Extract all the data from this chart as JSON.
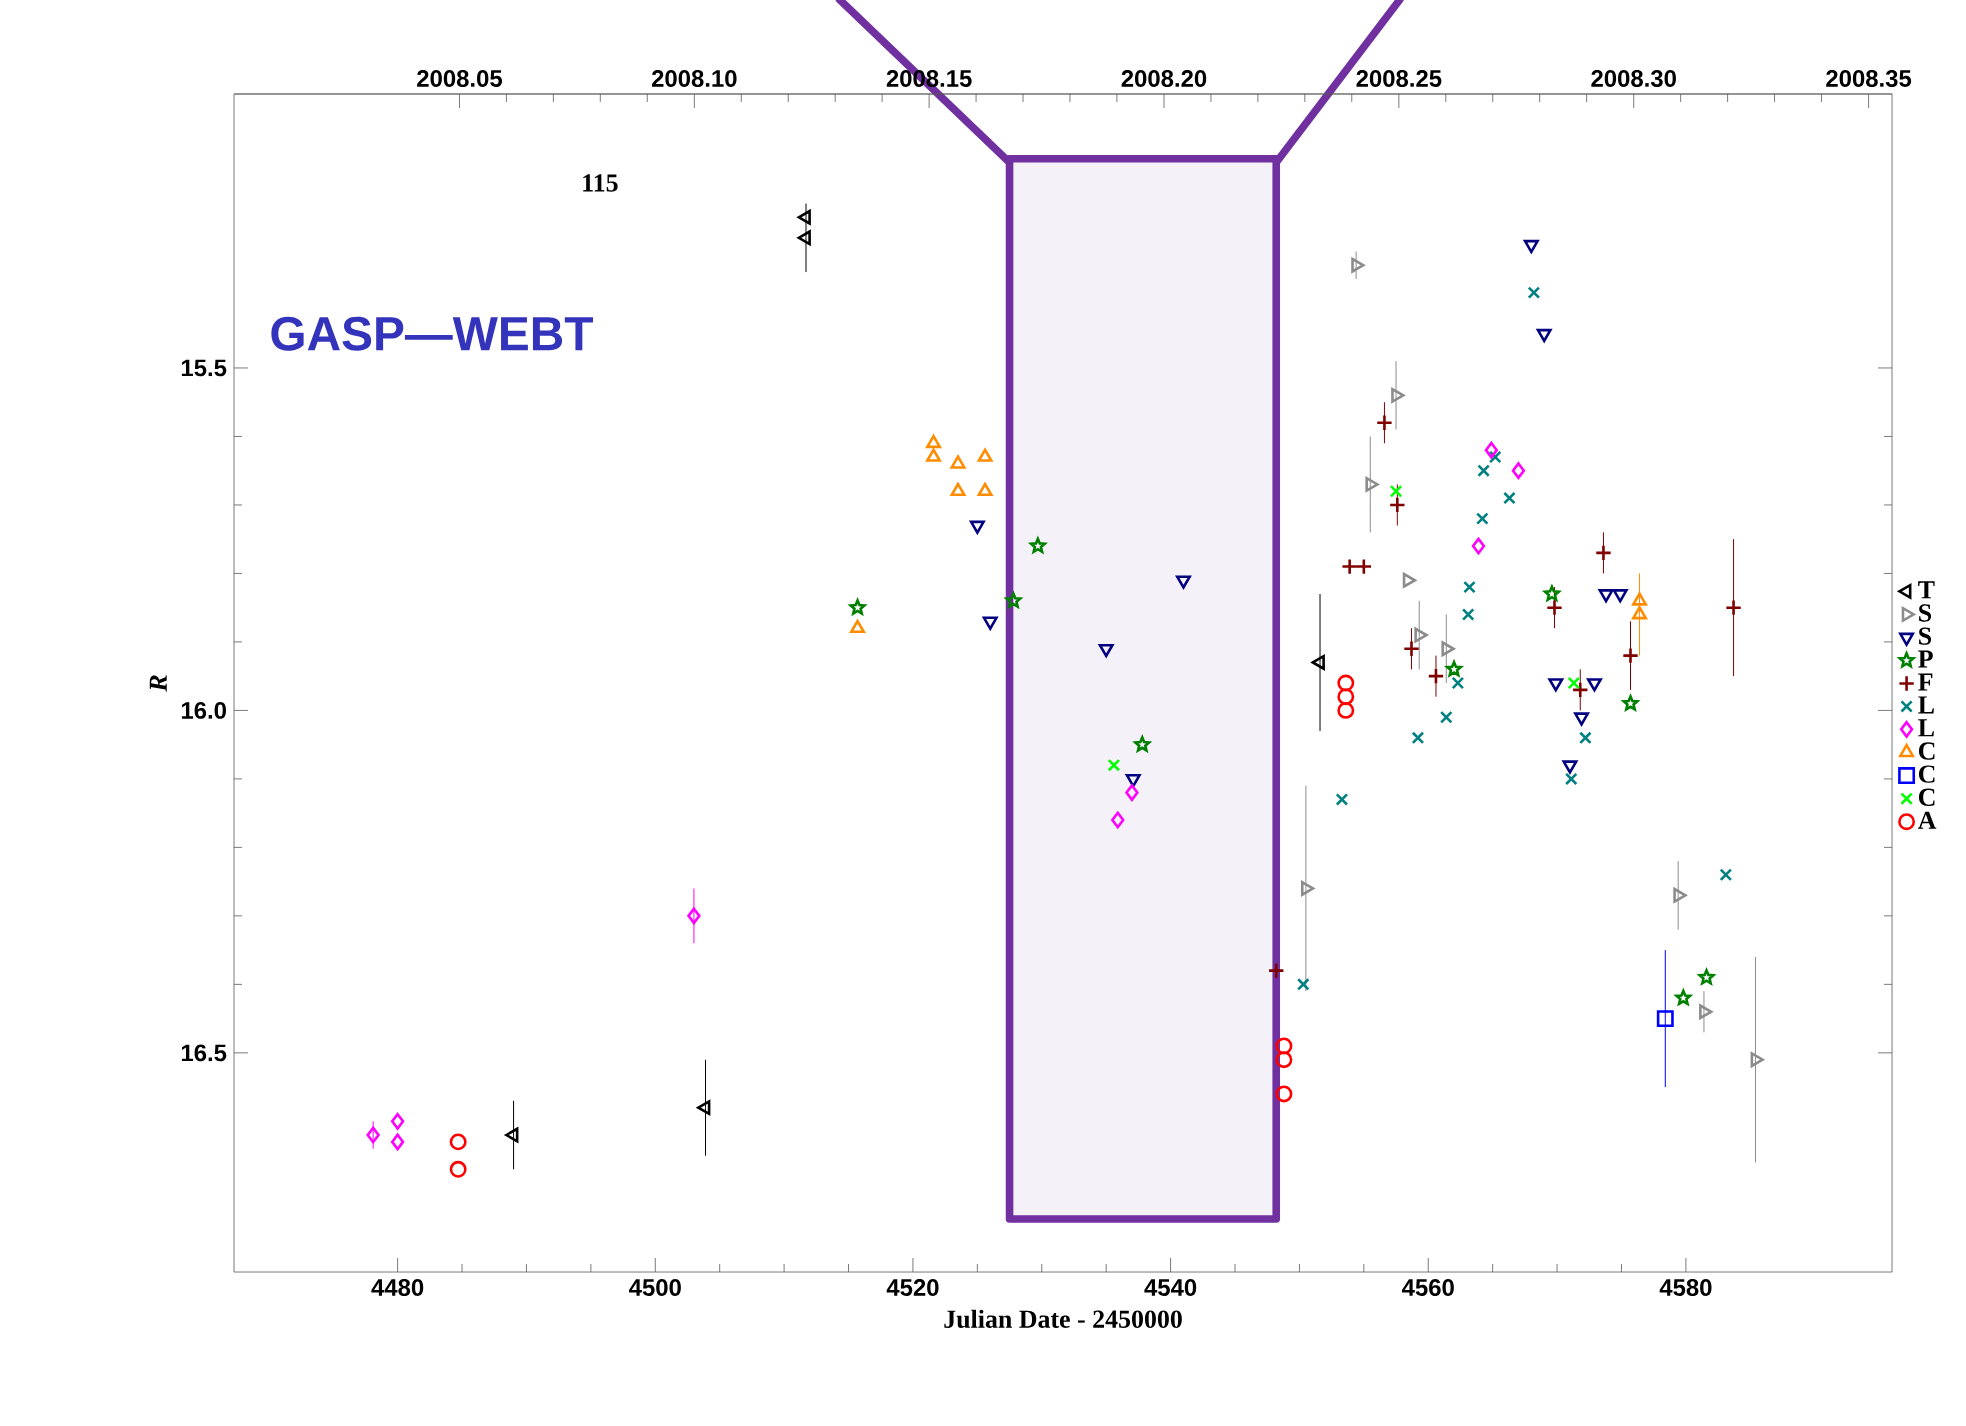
{
  "chart_data": {
    "type": "scatter",
    "xlabel": "Julian Date - 2450000",
    "ylabel": "*R*",
    "xlim": [
      4467.3,
      4596.0
    ],
    "xticks": [
      4480,
      4500,
      4520,
      4540,
      4560,
      4580
    ],
    "ylim": [
      16.82,
      15.1
    ],
    "yticks": [
      {
        "value": 15.5,
        "label": "15.5"
      },
      {
        "value": 16.0,
        "label": "16.0"
      },
      {
        "value": 16.5,
        "label": "16.5"
      }
    ],
    "x2lim": [
      2008.002,
      2008.355
    ],
    "x2ticks": [
      {
        "value": 2008.05,
        "label": "2008.05"
      },
      {
        "value": 2008.1,
        "label": "2008.10"
      },
      {
        "value": 2008.15,
        "label": "2008.15"
      },
      {
        "value": 2008.2,
        "label": "2008.20"
      },
      {
        "value": 2008.25,
        "label": "2008.25"
      },
      {
        "value": 2008.3,
        "label": "2008.30"
      },
      {
        "value": 2008.35,
        "label": "2008.35"
      }
    ],
    "annotations": [
      "115",
      "GASP—WEBT"
    ],
    "legend": "right",
    "bands": [
      {
        "axis": "x",
        "from": 4527.5,
        "to": 4548.2,
        "color": "#7030a0"
      }
    ],
    "series": [
      {
        "name": "T",
        "color": "#000000",
        "marker": "triangle-left",
        "x": [
          4511.7,
          4511.7,
          4489.0,
          4503.9,
          4551.6
        ],
        "values": [
          15.28,
          15.31,
          16.62,
          16.58,
          15.93
        ],
        "errors": [
          null,
          0.05,
          0.05,
          0.07,
          0.1
        ]
      },
      {
        "name": "S",
        "color": "#8c8c8c",
        "marker": "triangle-right",
        "x": [
          4554.4,
          4557.5,
          4555.5,
          4558.4,
          4559.3,
          4561.4,
          4550.5,
          4579.4,
          4581.4,
          4585.4
        ],
        "values": [
          15.35,
          15.54,
          15.67,
          15.81,
          15.89,
          15.91,
          16.26,
          16.27,
          16.44,
          16.51
        ],
        "errors": [
          0.02,
          0.05,
          0.07,
          null,
          0.05,
          0.05,
          0.15,
          0.05,
          0.03,
          0.15
        ]
      },
      {
        "name": "S",
        "color": "#000080",
        "marker": "triangle-down",
        "x": [
          4525.0,
          4526.0,
          4535.0,
          4541.0,
          4568.0,
          4569.0,
          4573.8,
          4574.9,
          4569.9,
          4572.9,
          4571.9,
          4571.0,
          4537.1
        ],
        "values": [
          15.73,
          15.87,
          15.91,
          15.81,
          15.32,
          15.45,
          15.83,
          15.83,
          15.96,
          15.96,
          16.01,
          16.08,
          16.1
        ]
      },
      {
        "name": "P",
        "color": "#008000",
        "marker": "star",
        "x": [
          4515.7,
          4529.7,
          4527.8,
          4569.6,
          4562.0,
          4575.7,
          4537.8,
          4581.6,
          4579.8
        ],
        "values": [
          15.85,
          15.76,
          15.84,
          15.83,
          15.94,
          15.99,
          16.05,
          16.39,
          16.42
        ]
      },
      {
        "name": "F",
        "color": "#800000",
        "marker": "plus",
        "x": [
          4556.6,
          4557.6,
          4553.9,
          4555.0,
          4558.7,
          4560.6,
          4573.6,
          4575.7,
          4583.7,
          4569.8,
          4571.8,
          4548.2
        ],
        "values": [
          15.58,
          15.7,
          15.79,
          15.79,
          15.91,
          15.95,
          15.77,
          15.92,
          15.85,
          15.85,
          15.97,
          16.38
        ],
        "errors": [
          0.03,
          0.03,
          null,
          null,
          0.03,
          0.03,
          0.03,
          0.05,
          0.1,
          0.03,
          0.03,
          null
        ]
      },
      {
        "name": "L",
        "color": "#008080",
        "marker": "cross",
        "x": [
          4568.2,
          4565.2,
          4564.3,
          4566.3,
          4564.2,
          4563.2,
          4563.1,
          4562.3,
          4561.4,
          4559.2,
          4553.3,
          4550.3,
          4572.2,
          4571.1,
          4583.1
        ],
        "values": [
          15.39,
          15.63,
          15.65,
          15.69,
          15.72,
          15.82,
          15.86,
          15.96,
          16.01,
          16.04,
          16.13,
          16.4,
          16.04,
          16.1,
          16.24
        ]
      },
      {
        "name": "L",
        "color": "#ff00ff",
        "marker": "diamond",
        "x": [
          4478.1,
          4480.0,
          4480.0,
          4503.0,
          4564.9,
          4567.0,
          4563.9,
          4537.0,
          4535.9
        ],
        "values": [
          16.62,
          16.6,
          16.63,
          16.3,
          15.62,
          15.65,
          15.76,
          16.12,
          16.16
        ],
        "errors": [
          0.02,
          null,
          null,
          0.04,
          null,
          null,
          null,
          null,
          null
        ]
      },
      {
        "name": "C",
        "color": "#ff8c00",
        "marker": "triangle",
        "x": [
          4521.6,
          4521.6,
          4523.5,
          4525.6,
          4523.5,
          4525.6,
          4515.7,
          4576.4,
          4576.4
        ],
        "values": [
          15.61,
          15.63,
          15.64,
          15.63,
          15.68,
          15.68,
          15.88,
          15.84,
          15.86
        ],
        "errors": [
          null,
          null,
          null,
          null,
          null,
          null,
          null,
          null,
          0.06
        ]
      },
      {
        "name": "C",
        "color": "#0000ff",
        "marker": "square",
        "x": [
          4578.4
        ],
        "values": [
          16.45
        ],
        "errors": [
          0.1
        ]
      },
      {
        "name": "C",
        "color": "#00ff00",
        "marker": "cross",
        "x": [
          4557.5,
          4571.3,
          4535.6
        ],
        "values": [
          15.68,
          15.96,
          16.08
        ]
      },
      {
        "name": "A",
        "color": "#ff0000",
        "marker": "circle",
        "x": [
          4484.7,
          4484.7,
          4553.6,
          4553.6,
          4553.6,
          4548.8,
          4548.8,
          4548.8
        ],
        "values": [
          16.63,
          16.67,
          15.96,
          15.98,
          16.0,
          16.49,
          16.51,
          16.56
        ]
      }
    ]
  }
}
